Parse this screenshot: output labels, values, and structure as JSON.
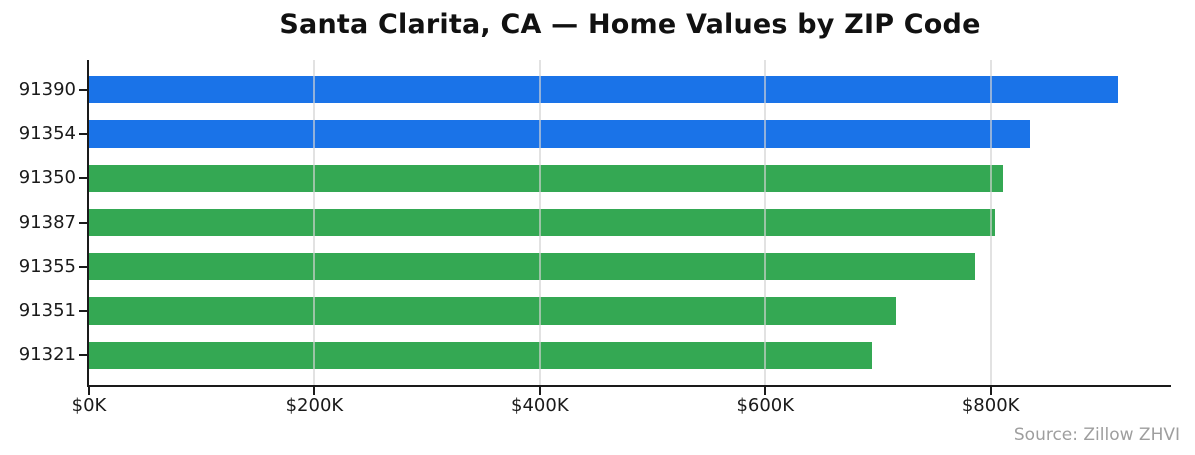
{
  "chart": {
    "title": "Santa Clarita, CA — Home Values by ZIP Code",
    "source_note": "Source: Zillow ZHVI"
  },
  "chart_data": {
    "type": "bar",
    "orientation": "horizontal",
    "title": "Santa Clarita, CA — Home Values by ZIP Code",
    "categories": [
      "91390",
      "91354",
      "91350",
      "91387",
      "91355",
      "91351",
      "91321"
    ],
    "values": [
      913000,
      835000,
      811000,
      804000,
      786000,
      716000,
      695000
    ],
    "value_unit": "USD",
    "bar_colors": [
      "#1a73e8",
      "#1a73e8",
      "#34a853",
      "#34a853",
      "#34a853",
      "#34a853",
      "#34a853"
    ],
    "xlabel": "",
    "ylabel": "",
    "x_ticks": [
      {
        "value": 0,
        "label": "$0K"
      },
      {
        "value": 200000,
        "label": "$200K"
      },
      {
        "value": 400000,
        "label": "$400K"
      },
      {
        "value": 600000,
        "label": "$600K"
      },
      {
        "value": 800000,
        "label": "$800K"
      }
    ],
    "xlim": [
      0,
      960000
    ],
    "grid": true,
    "grid_on_top_of_bars": true,
    "legend": false,
    "annotation": "Source: Zillow ZHVI",
    "colors": {
      "blue_bar": "#1a73e8",
      "green_bar": "#34a853",
      "grid_line": "#e2e2e2",
      "axis": "#1a1a1a",
      "tick_text": "#1a1a1a",
      "source_text": "#9e9e9e",
      "background": "#ffffff"
    }
  }
}
